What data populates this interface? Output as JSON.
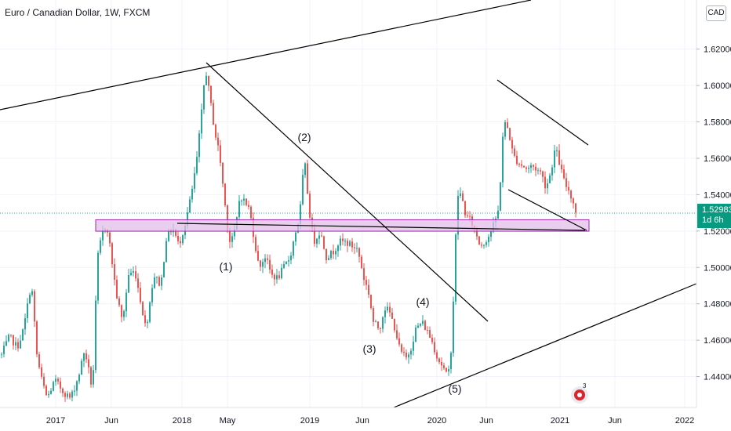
{
  "header": {
    "symbol_title": "Euro / Canadian Dollar, 1W, FXCM",
    "currency": "CAD"
  },
  "price_tag": {
    "price": "1.52983",
    "countdown": "1d 6h"
  },
  "badge": {
    "count": "3"
  },
  "colors": {
    "up": "#26a69a",
    "down": "#ef5350",
    "zone_fill": "#e1bee7",
    "zone_border": "#9c27b0",
    "lines": "#000000",
    "price_line": "#26a69a"
  },
  "chart_data": {
    "type": "candlestick",
    "title": "Euro / Canadian Dollar, 1W, FXCM",
    "timeframe": "1W",
    "x_tick_labels": [
      "2017",
      "Jun",
      "2018",
      "May",
      "2019",
      "Jun",
      "2020",
      "Jun",
      "2021",
      "Jun",
      "2022"
    ],
    "y_tick_labels": [
      "1.62000",
      "1.60000",
      "1.58000",
      "1.56000",
      "1.54000",
      "1.52000",
      "1.50000",
      "1.48000",
      "1.46000",
      "1.44000"
    ],
    "y_range": [
      1.423,
      1.647
    ],
    "last_price": 1.52983,
    "support_zone": [
      1.5199,
      1.5262
    ],
    "wave_labels": [
      "(1)",
      "(2)",
      "(3)",
      "(4)",
      "(5)"
    ],
    "grid": true
  }
}
